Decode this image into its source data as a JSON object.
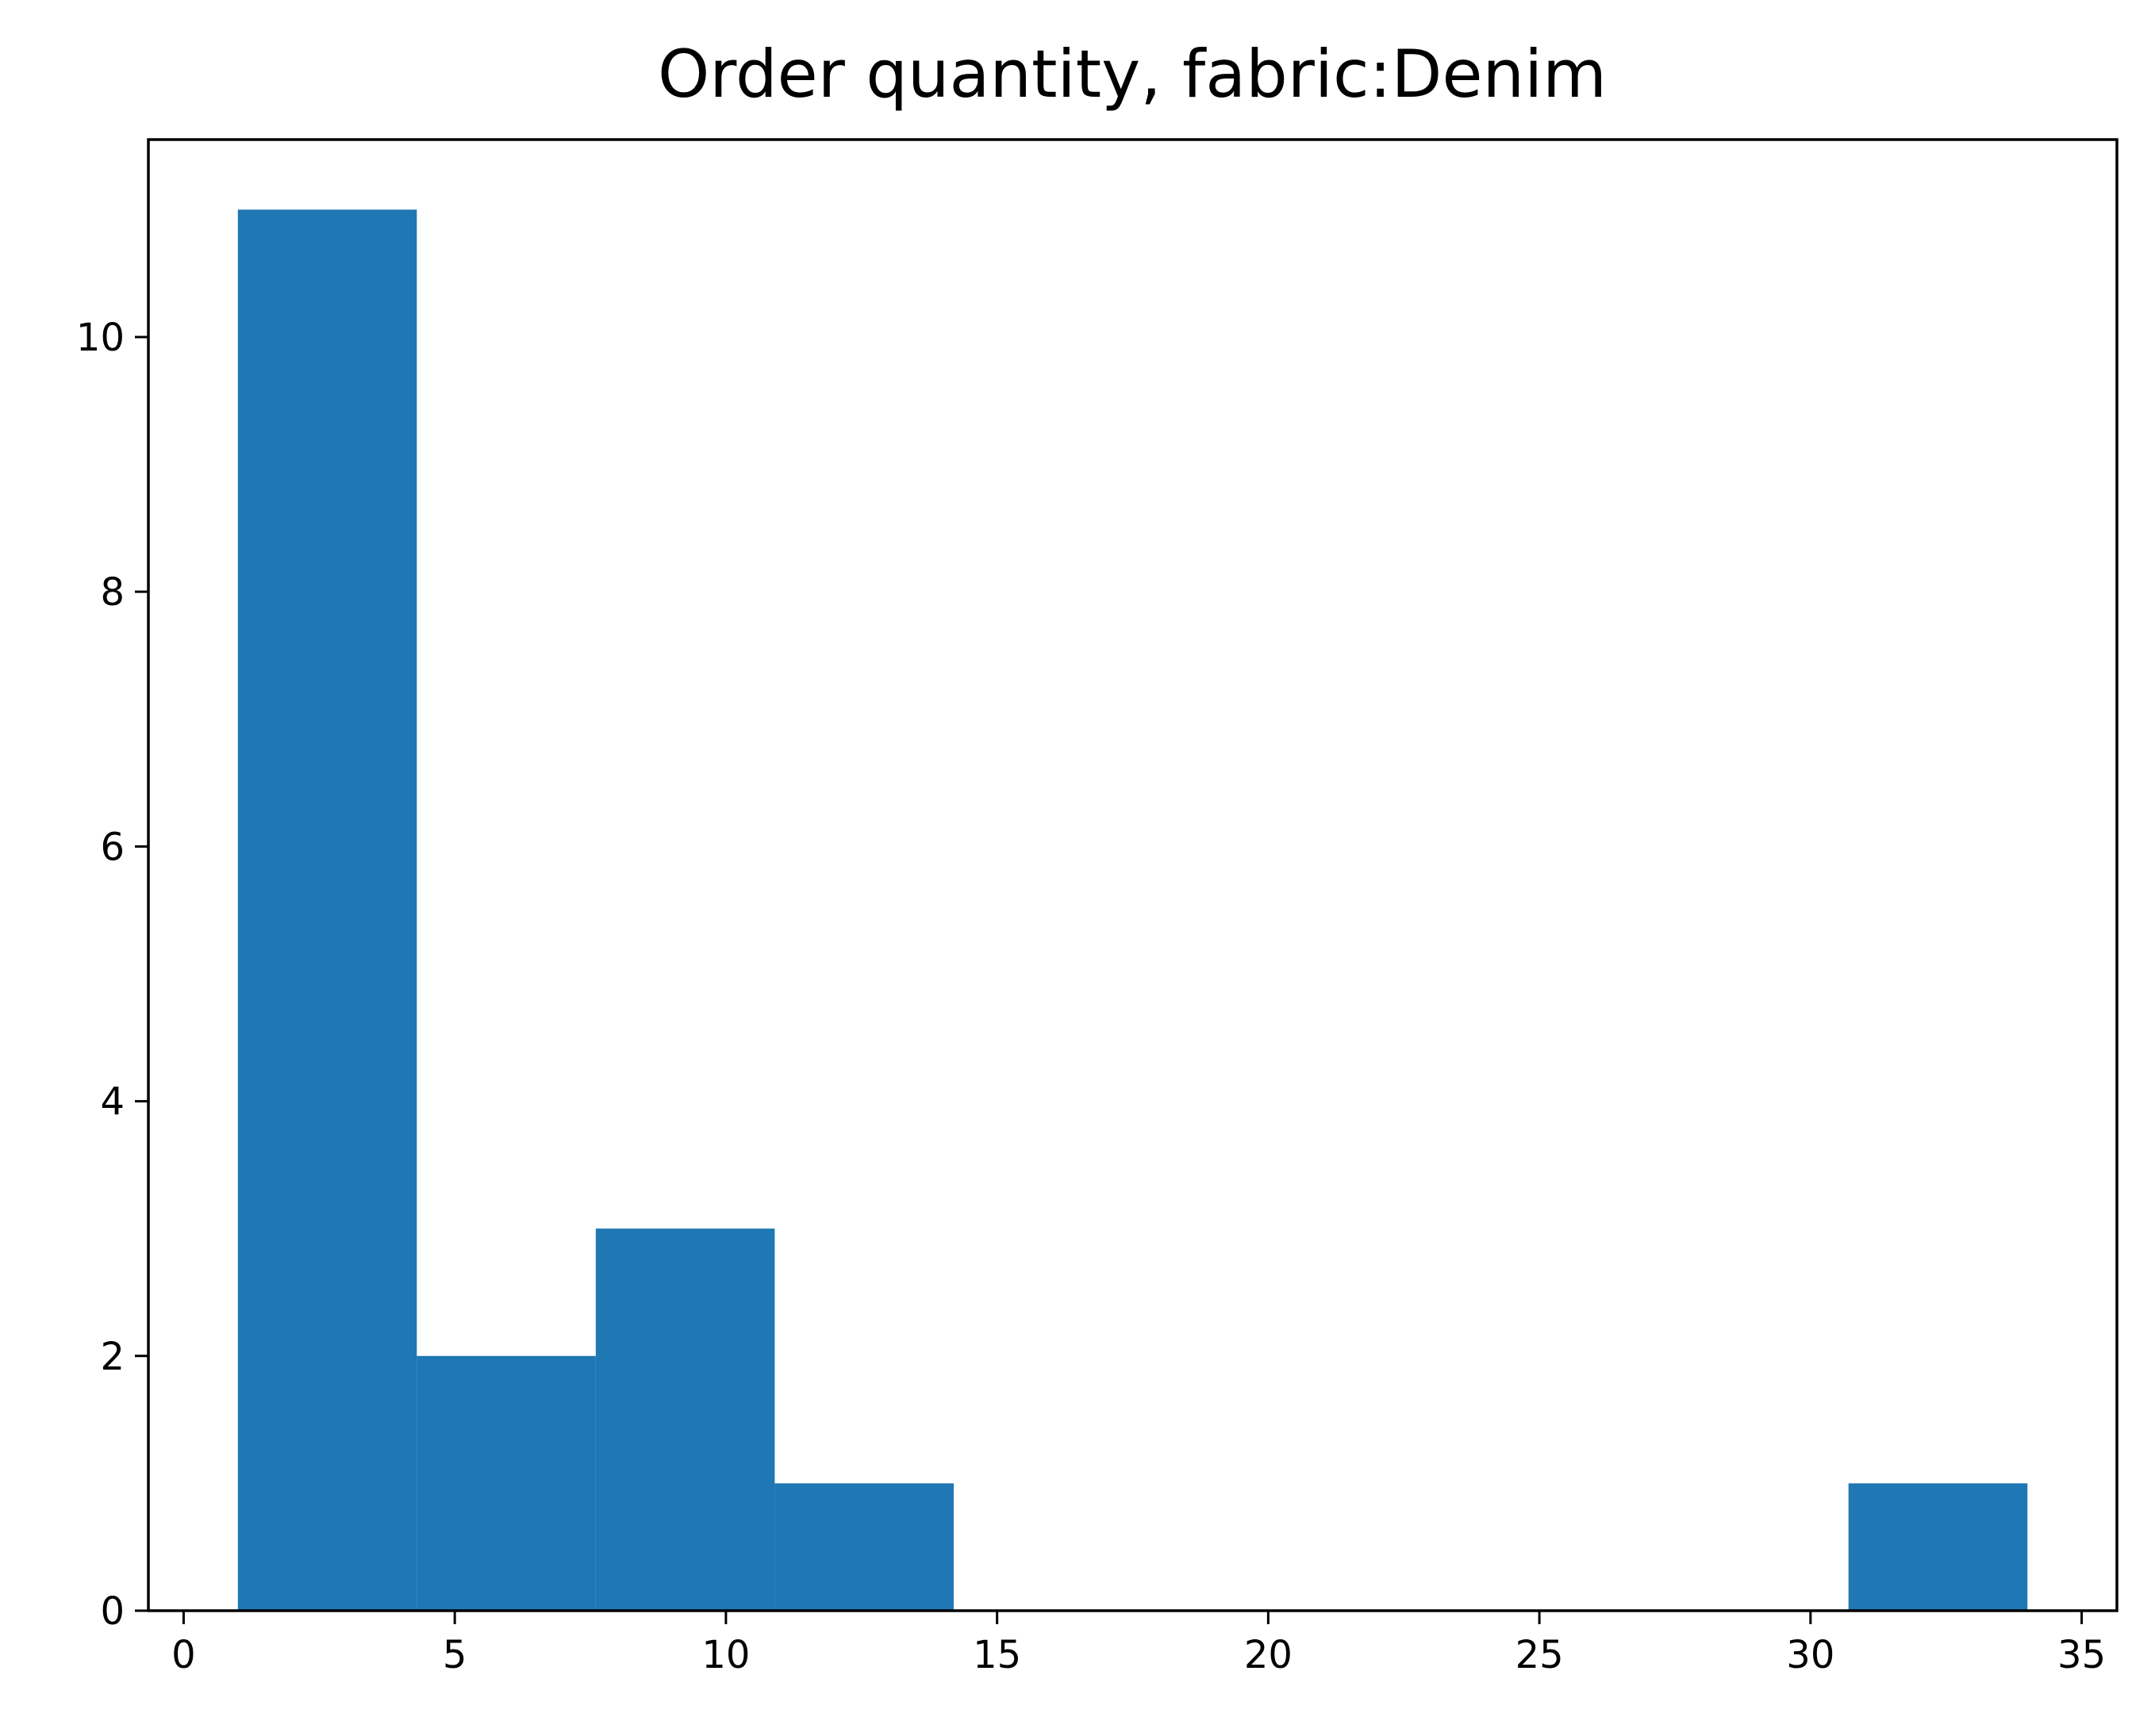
{
  "chart_data": {
    "type": "histogram",
    "title": "Order quantity, fabric:Denim",
    "xlabel": "",
    "ylabel": "",
    "bins": [
      {
        "x0": 1.0,
        "x1": 4.3,
        "count": 11
      },
      {
        "x0": 4.3,
        "x1": 7.6,
        "count": 2
      },
      {
        "x0": 7.6,
        "x1": 10.9,
        "count": 3
      },
      {
        "x0": 10.9,
        "x1": 14.2,
        "count": 1
      },
      {
        "x0": 14.2,
        "x1": 17.5,
        "count": 0
      },
      {
        "x0": 17.5,
        "x1": 20.8,
        "count": 0
      },
      {
        "x0": 20.8,
        "x1": 24.1,
        "count": 0
      },
      {
        "x0": 24.1,
        "x1": 27.4,
        "count": 0
      },
      {
        "x0": 27.4,
        "x1": 30.7,
        "count": 0
      },
      {
        "x0": 30.7,
        "x1": 34.0,
        "count": 1
      }
    ],
    "xlim": [
      -0.65,
      35.65
    ],
    "ylim": [
      0,
      11.55
    ],
    "xticks": [
      "0",
      "5",
      "10",
      "15",
      "20",
      "25",
      "30",
      "35"
    ],
    "yticks": [
      "0",
      "2",
      "4",
      "6",
      "8",
      "10"
    ],
    "bar_color": "#1f77b4",
    "grid": false,
    "legend": "none"
  }
}
